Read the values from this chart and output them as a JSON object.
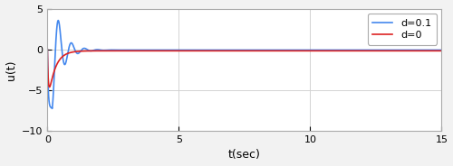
{
  "title": "",
  "xlabel": "t(sec)",
  "ylabel": "u(t)",
  "xlim": [
    0,
    15
  ],
  "ylim": [
    -10,
    5
  ],
  "yticks": [
    -10,
    -5,
    0,
    5
  ],
  "xticks": [
    0,
    5,
    10,
    15
  ],
  "grid_color": "#d3d3d3",
  "line1_color": "#4488ee",
  "line2_color": "#dd2222",
  "line1_label": "d=0.1",
  "line2_label": "d=0",
  "legend_loc": "upper right",
  "plot_bg": "#ffffff",
  "fig_bg": "#f2f2f2",
  "figsize": [
    5.0,
    1.84
  ],
  "dpi": 100,
  "linewidth": 1.2,
  "xlabel_fontsize": 9,
  "ylabel_fontsize": 9,
  "tick_fontsize": 8,
  "legend_fontsize": 8
}
